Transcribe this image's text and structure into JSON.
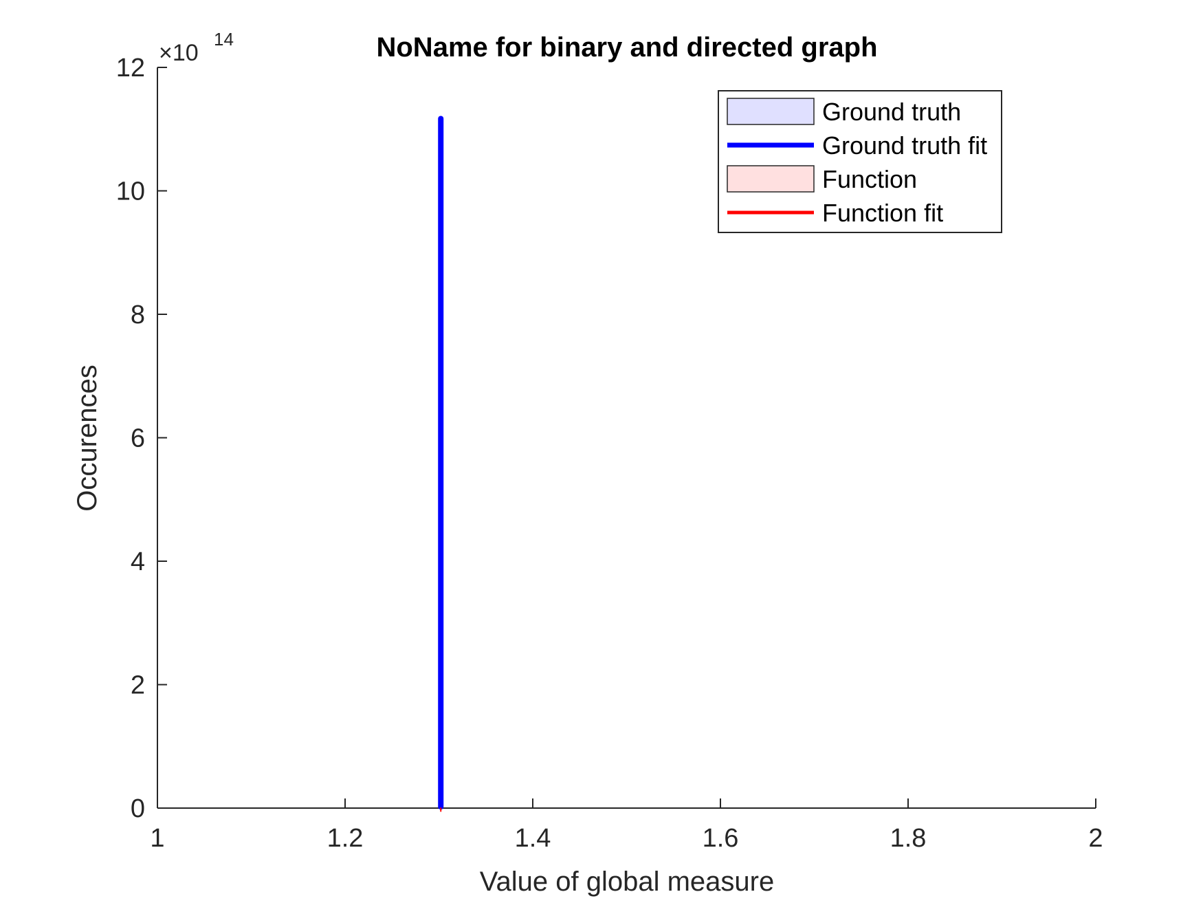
{
  "chart_data": {
    "type": "line",
    "title": "NoName for binary and directed graph",
    "xlabel": "Value of global measure",
    "ylabel": "Occurences",
    "xlim": [
      1,
      2
    ],
    "ylim": [
      0,
      1200000000000000.0
    ],
    "x_ticks": [
      1,
      1.2,
      1.4,
      1.6,
      1.8,
      2
    ],
    "x_tick_labels": [
      "1",
      "1.2",
      "1.4",
      "1.6",
      "1.8",
      "2"
    ],
    "y_ticks": [
      0,
      200000000000000.0,
      400000000000000.0,
      600000000000000.0,
      800000000000000.0,
      1000000000000000.0,
      1200000000000000.0
    ],
    "y_tick_labels": [
      "0",
      "2",
      "4",
      "6",
      "8",
      "10",
      "12"
    ],
    "y_exponent": {
      "base": "×10",
      "power": "14"
    },
    "grid": false,
    "legend_position": "top-right",
    "series": [
      {
        "name": "Ground truth",
        "kind": "area",
        "color": "#e0e0ff",
        "edge": "#000000",
        "x": [],
        "y": []
      },
      {
        "name": "Ground truth fit",
        "kind": "line",
        "color": "#0000ff",
        "x": [
          1.302,
          1.302
        ],
        "y": [
          2000000000000.0,
          1117000000000000.0
        ]
      },
      {
        "name": "Function",
        "kind": "area",
        "color": "#ffe0e0",
        "edge": "#000000",
        "x": [],
        "y": []
      },
      {
        "name": "Function fit",
        "kind": "line",
        "color": "#ff0000",
        "x": [
          1.302,
          1.302
        ],
        "y": [
          -5000000000000.0,
          0.0
        ]
      }
    ]
  }
}
